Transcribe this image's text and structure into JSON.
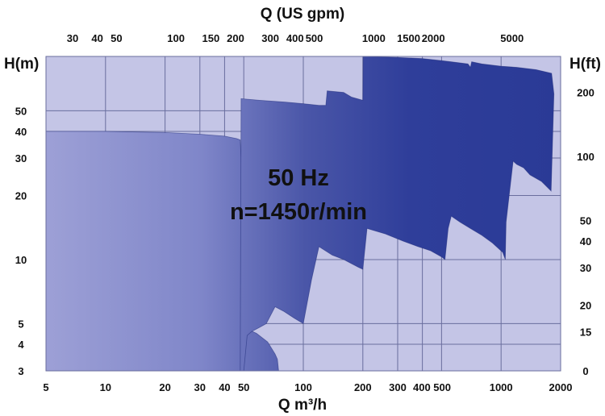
{
  "chart_data": {
    "type": "area",
    "title": "",
    "annotation_lines": [
      "50 Hz",
      "n=1450r/min"
    ],
    "x_axis_bottom": {
      "label": "Q m³/h",
      "scale": "log",
      "range": [
        5,
        2000
      ],
      "ticks": [
        5,
        10,
        20,
        30,
        40,
        50,
        100,
        200,
        300,
        400,
        500,
        1000,
        2000
      ],
      "tick_labels": [
        "5",
        "10",
        "20",
        "30",
        "40",
        "50",
        "100",
        "200",
        "300",
        "400 500",
        "1000",
        "2000"
      ]
    },
    "x_axis_top": {
      "label": "Q (US gpm)",
      "scale": "log",
      "ticks": [
        30,
        40,
        50,
        100,
        150,
        200,
        300,
        400,
        500,
        1000,
        1500,
        2000,
        5000
      ],
      "tick_labels": [
        "30",
        "40",
        "50",
        "100",
        "150",
        "200",
        "300",
        "400",
        "500",
        "1000",
        "1500",
        "2000",
        "5000"
      ]
    },
    "y_axis_left": {
      "label": "H(m)",
      "scale": "log",
      "range": [
        3,
        90
      ],
      "ticks": [
        3,
        4,
        5,
        10,
        20,
        30,
        40,
        50
      ],
      "tick_labels": [
        "3",
        "4",
        "5",
        "10",
        "20",
        "30",
        "40",
        "50"
      ]
    },
    "y_axis_right": {
      "label": "H(ft)",
      "ticks": [
        0,
        15,
        20,
        30,
        40,
        50,
        100,
        200
      ],
      "tick_labels": [
        "0",
        "15",
        "20",
        "30",
        "40",
        "50",
        "100",
        "200"
      ]
    },
    "grid": true,
    "colors": {
      "background": "#c4c5e6",
      "grid": "#6a6e9e",
      "fill_light": "#9da0d6",
      "fill_dark": "#2a3a96",
      "edge_dark": "#1e2a78",
      "text": "#111111"
    },
    "regions": [
      {
        "points": [
          [
            5,
            3.8
          ],
          [
            6,
            3.65
          ],
          [
            7,
            3.45
          ],
          [
            8,
            3.2
          ],
          [
            8.2,
            3
          ],
          [
            5,
            3
          ]
        ]
      },
      {
        "points": [
          [
            8.6,
            3
          ],
          [
            9,
            4.9
          ],
          [
            10.5,
            4.7
          ],
          [
            12,
            4.4
          ],
          [
            14,
            4.1
          ],
          [
            14.8,
            3.9
          ],
          [
            15,
            3
          ]
        ]
      },
      {
        "points": [
          [
            14.8,
            3
          ],
          [
            15,
            4.9
          ],
          [
            18,
            4.8
          ],
          [
            22,
            4.55
          ],
          [
            26,
            4.25
          ],
          [
            28.5,
            4.0
          ],
          [
            29,
            3
          ]
        ]
      },
      {
        "points": [
          [
            28,
            3
          ],
          [
            28.5,
            4.8
          ],
          [
            32,
            4.7
          ],
          [
            36,
            4.5
          ],
          [
            42,
            4.1
          ],
          [
            46,
            3.7
          ],
          [
            47,
            3
          ]
        ]
      },
      {
        "points": [
          [
            5,
            3
          ],
          [
            5,
            40
          ],
          [
            10,
            40
          ],
          [
            20,
            39.5
          ],
          [
            30,
            38.8
          ],
          [
            40,
            38
          ],
          [
            46,
            37
          ],
          [
            48,
            36.5
          ],
          [
            49,
            25
          ],
          [
            48.5,
            5
          ],
          [
            50,
            4.8
          ],
          [
            58,
            4.5
          ],
          [
            66,
            4.1
          ],
          [
            72,
            3.6
          ],
          [
            74,
            3.4
          ],
          [
            75,
            3
          ]
        ]
      },
      {
        "points": [
          [
            48,
            3
          ],
          [
            48.5,
            57
          ],
          [
            60,
            56
          ],
          [
            80,
            55
          ],
          [
            100,
            54
          ],
          [
            120,
            53
          ],
          [
            130,
            53
          ],
          [
            132,
            62
          ],
          [
            160,
            61
          ],
          [
            175,
            58
          ],
          [
            200,
            56
          ],
          [
            201,
            90
          ],
          [
            300,
            89
          ],
          [
            400,
            88
          ],
          [
            500,
            86
          ],
          [
            560,
            85
          ],
          [
            680,
            83
          ],
          [
            700,
            80
          ],
          [
            710,
            85
          ],
          [
            800,
            83
          ],
          [
            1000,
            81
          ],
          [
            1200,
            80
          ],
          [
            1500,
            78
          ],
          [
            1800,
            75
          ],
          [
            1850,
            60
          ],
          [
            1790,
            21
          ],
          [
            1600,
            23.3
          ],
          [
            1400,
            25
          ],
          [
            1300,
            27
          ],
          [
            1200,
            28
          ],
          [
            1150,
            29
          ],
          [
            1060,
            15
          ],
          [
            1050,
            10
          ],
          [
            1020,
            10.8
          ],
          [
            900,
            12
          ],
          [
            800,
            13
          ],
          [
            700,
            14
          ],
          [
            620,
            15
          ],
          [
            560,
            16
          ],
          [
            540,
            14
          ],
          [
            520,
            10
          ],
          [
            500,
            10.3
          ],
          [
            440,
            11
          ],
          [
            380,
            11.5
          ],
          [
            320,
            12.2
          ],
          [
            260,
            13.2
          ],
          [
            210,
            14
          ],
          [
            200,
            9
          ],
          [
            190,
            9.2
          ],
          [
            160,
            10
          ],
          [
            140,
            10.5
          ],
          [
            120,
            11.5
          ],
          [
            110,
            8
          ],
          [
            100,
            5
          ],
          [
            90,
            5.3
          ],
          [
            80,
            5.7
          ],
          [
            72,
            6
          ],
          [
            65,
            5
          ],
          [
            60,
            4.8
          ],
          [
            55,
            4.6
          ],
          [
            52,
            4.4
          ],
          [
            50,
            3
          ]
        ]
      }
    ]
  }
}
